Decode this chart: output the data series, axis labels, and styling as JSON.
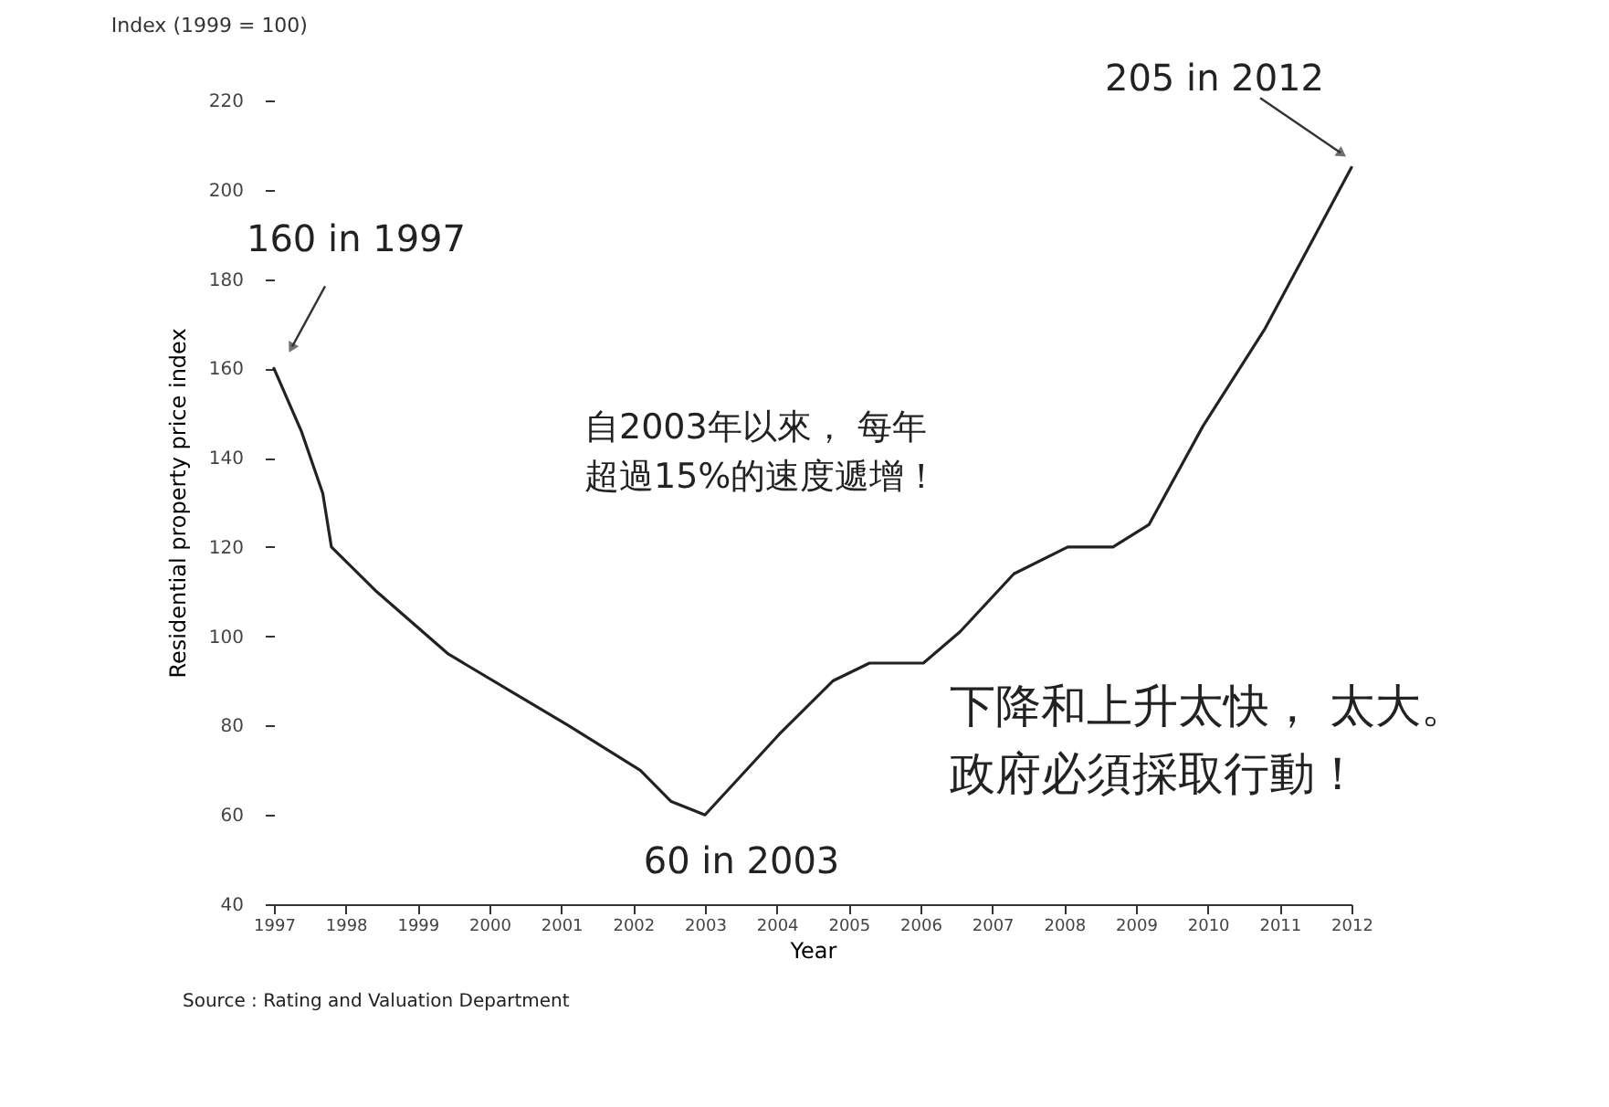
{
  "chart_data": {
    "type": "line",
    "title": "Index (1999 = 100)",
    "xlabel": "Year",
    "ylabel": "Residential property price index",
    "x": [
      1997,
      1997.38,
      1997.68,
      1997.8,
      1998.43,
      1999.43,
      2001.1,
      2002.1,
      2002.53,
      2003,
      2004.03,
      2004.78,
      2005.29,
      2006.04,
      2006.55,
      2007.3,
      2008.05,
      2008.68,
      2009.18,
      2009.93,
      2010.8,
      2011.5,
      2012
    ],
    "series": [
      {
        "color": "#222222",
        "values": [
          160,
          146,
          132,
          120,
          110,
          96,
          80,
          70,
          63,
          60,
          78,
          90,
          94,
          94,
          101,
          114,
          120,
          120,
          125,
          147,
          169,
          190,
          205
        ]
      }
    ],
    "xlim": [
      1997,
      2012
    ],
    "xticks": [
      1997,
      1998,
      1999,
      2000,
      2001,
      2002,
      2003,
      2004,
      2005,
      2006,
      2007,
      2008,
      2009,
      2010,
      2011,
      2012
    ],
    "ylim": [
      40,
      220
    ],
    "yticks": [
      40,
      60,
      80,
      100,
      120,
      140,
      160,
      180,
      200,
      220
    ],
    "grid": false,
    "annotations": [
      {
        "text": "160 in 1997",
        "x": 1997,
        "y": 160
      },
      {
        "text": "205 in 2012",
        "x": 2012,
        "y": 205
      },
      {
        "text": "60 in 2003",
        "x": 2003,
        "y": 60
      },
      "自2003年以來， 每年",
      "超過15%的速度遞增！",
      "下降和上升太快， 太大。",
      "政府必須採取行動！",
      "Source : Rating and Valuation Department"
    ]
  }
}
